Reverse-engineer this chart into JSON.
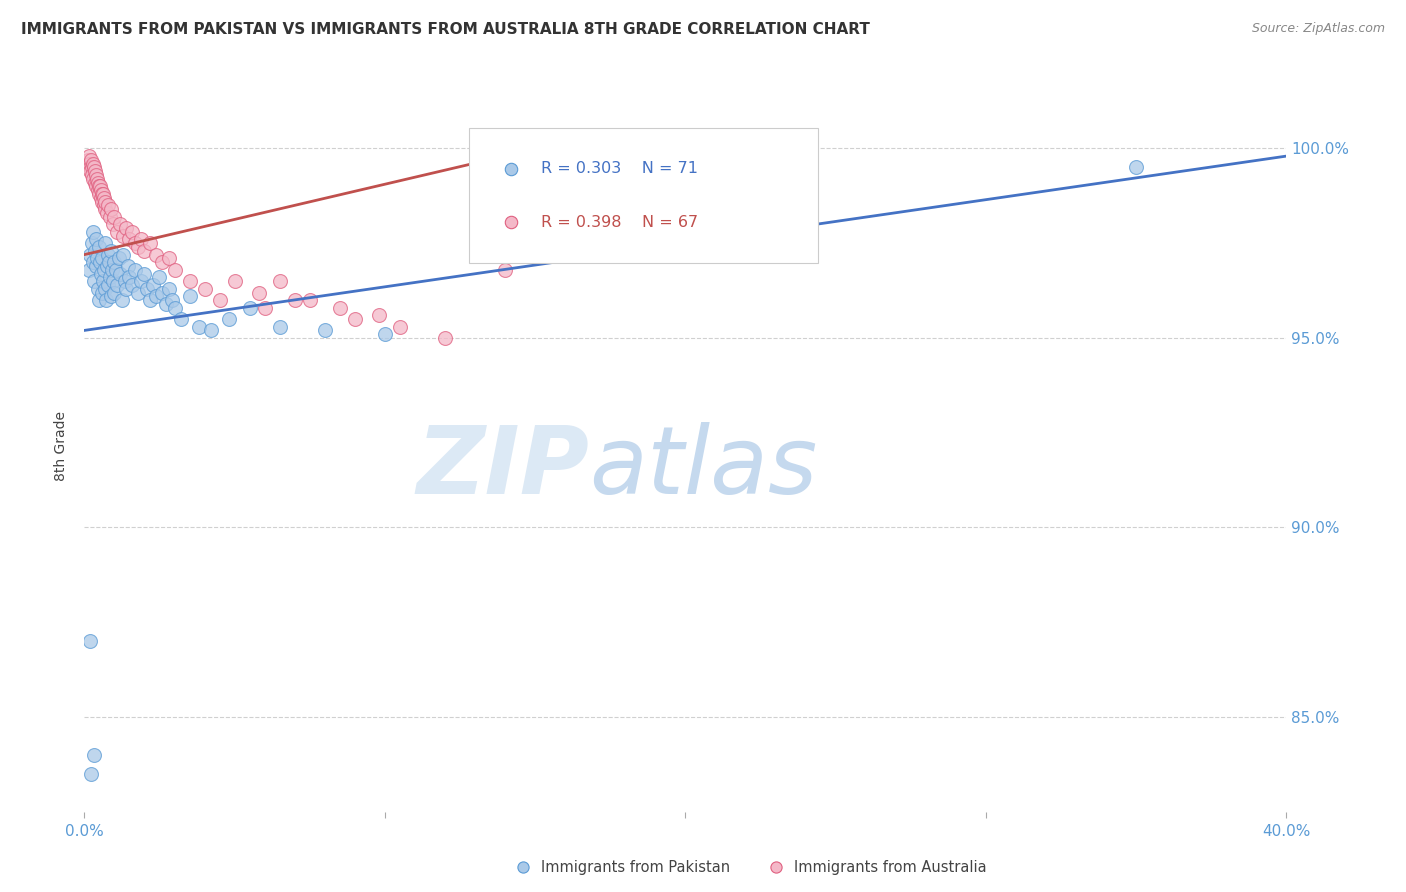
{
  "title": "IMMIGRANTS FROM PAKISTAN VS IMMIGRANTS FROM AUSTRALIA 8TH GRADE CORRELATION CHART",
  "source": "Source: ZipAtlas.com",
  "ylabel_label": "8th Grade",
  "y_ticks": [
    85.0,
    90.0,
    95.0,
    100.0
  ],
  "y_tick_labels": [
    "85.0%",
    "90.0%",
    "95.0%",
    "100.0%"
  ],
  "x_range": [
    0.0,
    40.0
  ],
  "y_range": [
    82.5,
    101.8
  ],
  "x_ticks": [
    0,
    10,
    20,
    30,
    40
  ],
  "x_tick_labels": [
    "0.0%",
    "",
    "",
    "",
    "40.0%"
  ],
  "legend1_r": "0.303",
  "legend1_n": "71",
  "legend2_r": "0.398",
  "legend2_n": "67",
  "blue_color": "#aac9e8",
  "pink_color": "#f4b8c8",
  "blue_edge_color": "#5b9bd5",
  "pink_edge_color": "#e06080",
  "blue_line_color": "#4472c4",
  "pink_line_color": "#c0504d",
  "watermark_zip_color": "#dce9f5",
  "watermark_atlas_color": "#c5d9ee",
  "tick_color": "#5b9bd5",
  "grid_color": "#d0d0d0",
  "blue_scatter_x": [
    0.15,
    0.2,
    0.25,
    0.28,
    0.3,
    0.32,
    0.35,
    0.38,
    0.4,
    0.42,
    0.45,
    0.48,
    0.5,
    0.52,
    0.55,
    0.58,
    0.6,
    0.62,
    0.65,
    0.68,
    0.7,
    0.72,
    0.75,
    0.78,
    0.8,
    0.82,
    0.85,
    0.88,
    0.9,
    0.92,
    0.95,
    0.98,
    1.0,
    1.05,
    1.1,
    1.15,
    1.2,
    1.25,
    1.3,
    1.35,
    1.4,
    1.45,
    1.5,
    1.6,
    1.7,
    1.8,
    1.9,
    2.0,
    2.1,
    2.2,
    2.3,
    2.4,
    2.5,
    2.6,
    2.7,
    2.8,
    2.9,
    3.0,
    3.2,
    3.5,
    3.8,
    4.2,
    4.8,
    5.5,
    6.5,
    8.0,
    10.0,
    35.0,
    0.18,
    0.23,
    0.33
  ],
  "blue_scatter_y": [
    96.8,
    97.2,
    97.5,
    97.8,
    97.0,
    96.5,
    97.3,
    96.9,
    97.6,
    97.1,
    96.3,
    97.4,
    96.0,
    97.0,
    96.7,
    96.2,
    97.1,
    96.5,
    96.8,
    96.3,
    97.5,
    96.0,
    96.9,
    97.2,
    96.4,
    97.0,
    96.6,
    96.1,
    97.3,
    96.8,
    96.5,
    97.0,
    96.2,
    96.8,
    96.4,
    97.1,
    96.7,
    96.0,
    97.2,
    96.5,
    96.3,
    96.9,
    96.6,
    96.4,
    96.8,
    96.2,
    96.5,
    96.7,
    96.3,
    96.0,
    96.4,
    96.1,
    96.6,
    96.2,
    95.9,
    96.3,
    96.0,
    95.8,
    95.5,
    96.1,
    95.3,
    95.2,
    95.5,
    95.8,
    95.3,
    95.2,
    95.1,
    99.5,
    87.0,
    83.5,
    84.0
  ],
  "pink_scatter_x": [
    0.1,
    0.12,
    0.14,
    0.16,
    0.18,
    0.2,
    0.22,
    0.24,
    0.26,
    0.28,
    0.3,
    0.32,
    0.34,
    0.36,
    0.38,
    0.4,
    0.42,
    0.44,
    0.46,
    0.48,
    0.5,
    0.52,
    0.54,
    0.56,
    0.58,
    0.6,
    0.62,
    0.64,
    0.66,
    0.68,
    0.7,
    0.75,
    0.8,
    0.85,
    0.9,
    0.95,
    1.0,
    1.1,
    1.2,
    1.3,
    1.4,
    1.5,
    1.6,
    1.7,
    1.8,
    1.9,
    2.0,
    2.2,
    2.4,
    2.6,
    2.8,
    3.0,
    3.5,
    4.0,
    4.5,
    5.0,
    6.0,
    7.5,
    9.0,
    10.5,
    12.0,
    14.0,
    5.8,
    6.5,
    7.0,
    8.5,
    9.8
  ],
  "pink_scatter_y": [
    99.5,
    99.7,
    99.8,
    99.6,
    99.5,
    99.4,
    99.7,
    99.5,
    99.3,
    99.6,
    99.2,
    99.5,
    99.4,
    99.1,
    99.3,
    99.0,
    99.2,
    98.9,
    99.1,
    99.0,
    98.8,
    99.0,
    98.7,
    98.9,
    98.8,
    98.6,
    98.8,
    98.5,
    98.7,
    98.4,
    98.6,
    98.3,
    98.5,
    98.2,
    98.4,
    98.0,
    98.2,
    97.8,
    98.0,
    97.7,
    97.9,
    97.6,
    97.8,
    97.5,
    97.4,
    97.6,
    97.3,
    97.5,
    97.2,
    97.0,
    97.1,
    96.8,
    96.5,
    96.3,
    96.0,
    96.5,
    95.8,
    96.0,
    95.5,
    95.3,
    95.0,
    96.8,
    96.2,
    96.5,
    96.0,
    95.8,
    95.6
  ],
  "blue_trend_x": [
    0.0,
    40.0
  ],
  "blue_trend_y": [
    95.2,
    99.8
  ],
  "pink_trend_x": [
    0.0,
    14.0
  ],
  "pink_trend_y": [
    97.2,
    99.8
  ]
}
